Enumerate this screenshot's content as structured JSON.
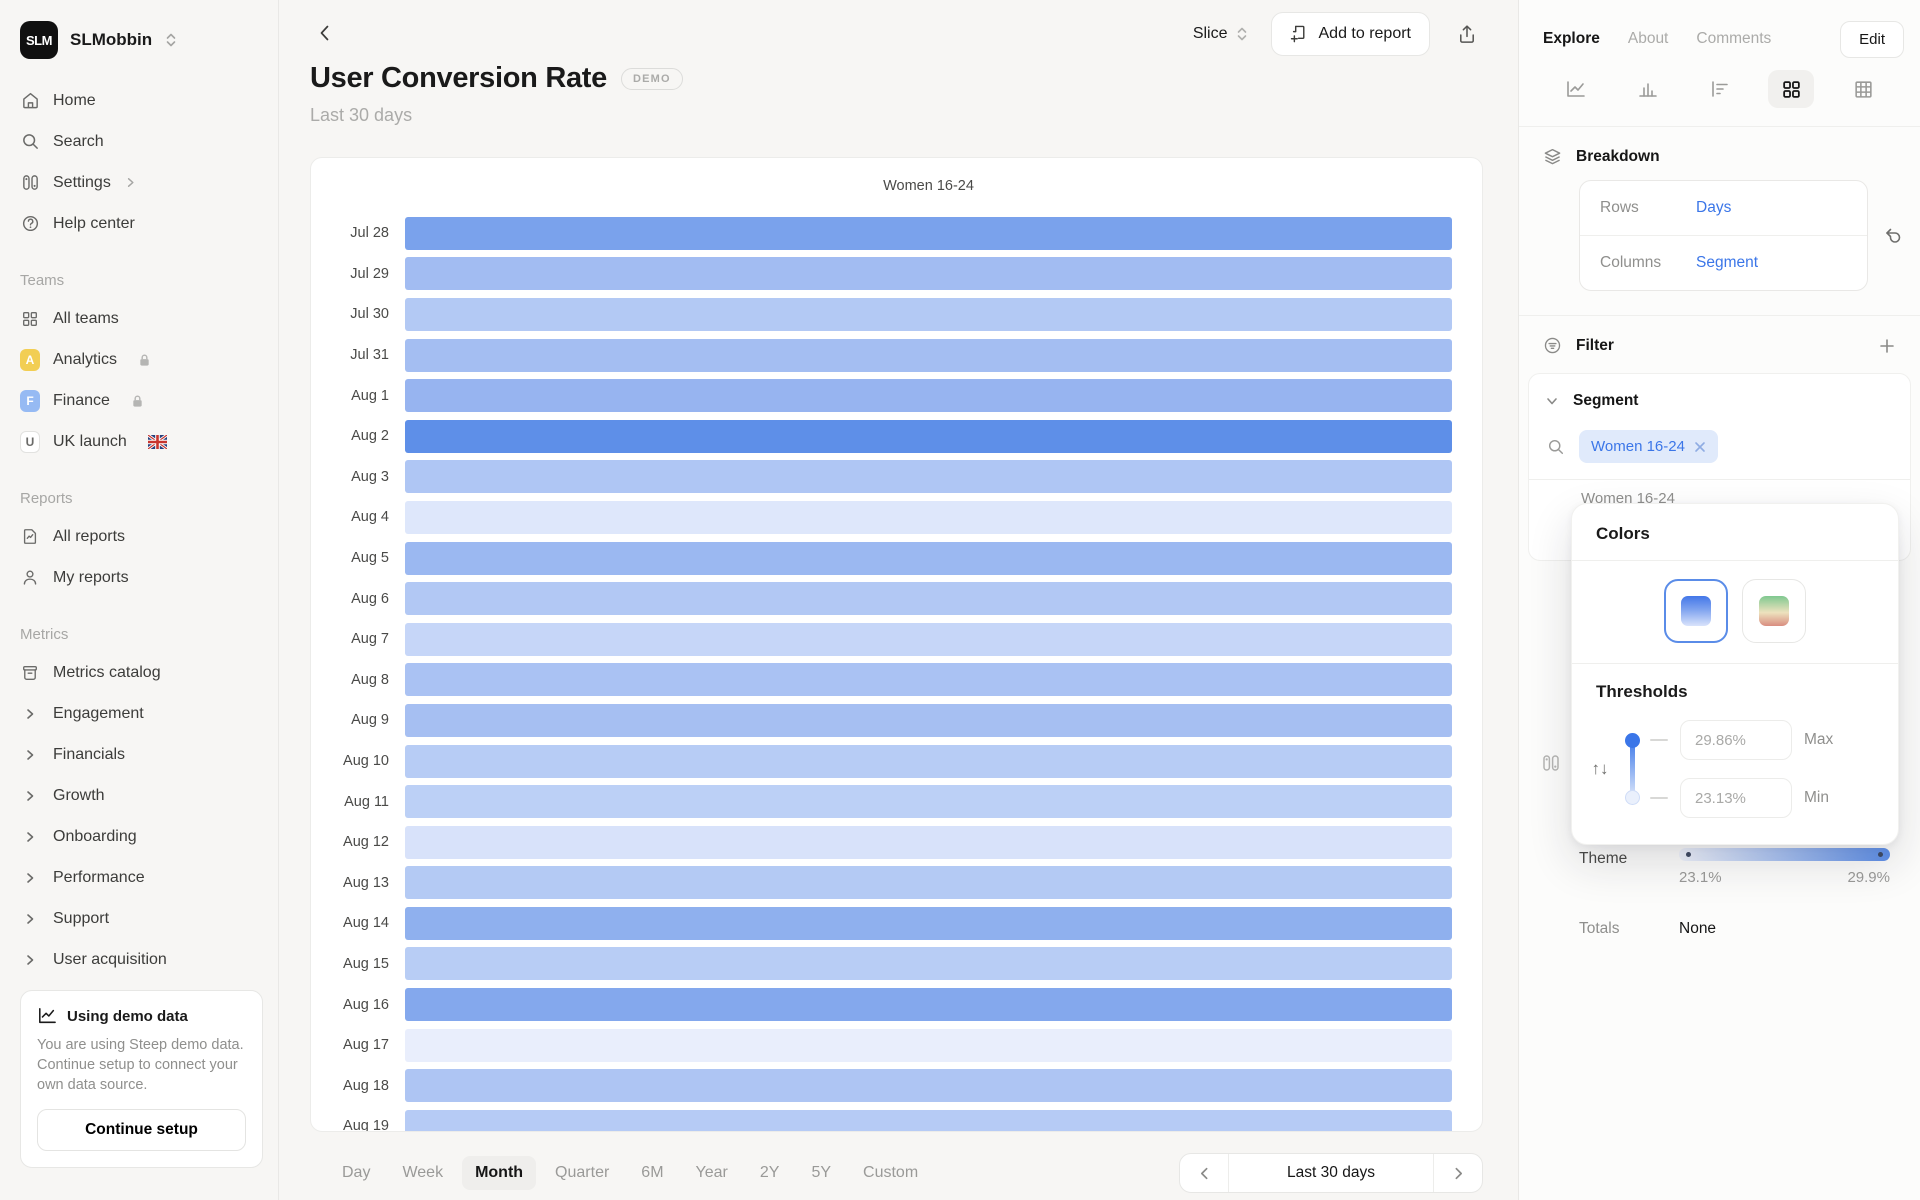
{
  "workspace": {
    "name": "SLMobbin",
    "logo_text": "SLM"
  },
  "sidebar": {
    "main_items": [
      {
        "label": "Home"
      },
      {
        "label": "Search"
      },
      {
        "label": "Settings"
      },
      {
        "label": "Help center"
      }
    ],
    "teams": {
      "title": "Teams",
      "items": [
        {
          "label": "All teams"
        },
        {
          "label": "Analytics",
          "badge": "A",
          "locked": true
        },
        {
          "label": "Finance",
          "badge": "F",
          "locked": true
        },
        {
          "label": "UK launch",
          "badge": "U",
          "flag": "uk"
        }
      ]
    },
    "reports": {
      "title": "Reports",
      "items": [
        {
          "label": "All reports"
        },
        {
          "label": "My reports"
        }
      ]
    },
    "metrics": {
      "title": "Metrics",
      "catalog_label": "Metrics catalog",
      "groups": [
        {
          "label": "Engagement"
        },
        {
          "label": "Financials"
        },
        {
          "label": "Growth"
        },
        {
          "label": "Onboarding"
        },
        {
          "label": "Performance"
        },
        {
          "label": "Support"
        },
        {
          "label": "User acquisition"
        }
      ]
    },
    "demo_card": {
      "title": "Using demo data",
      "body": "You are using Steep demo data. Continue setup to connect your own data source.",
      "button": "Continue setup"
    }
  },
  "header": {
    "title": "User Conversion Rate",
    "badge": "DEMO",
    "subtitle": "Last 30 days",
    "slice_label": "Slice",
    "add_to_report_label": "Add to report"
  },
  "toolbar": {
    "granularity": [
      "Day",
      "Week",
      "Month",
      "Quarter",
      "6M",
      "Year",
      "2Y",
      "5Y",
      "Custom"
    ],
    "active": "Month",
    "range_label": "Last 30 days"
  },
  "right_panel": {
    "tabs": {
      "explore": "Explore",
      "about": "About",
      "comments": "Comments"
    },
    "edit_button": "Edit",
    "breakdown": {
      "title": "Breakdown",
      "rows_label": "Rows",
      "rows_value": "Days",
      "columns_label": "Columns",
      "columns_value": "Segment"
    },
    "filter": {
      "title": "Filter"
    },
    "segment": {
      "title": "Segment",
      "chip": "Women 16-24",
      "hidden_option": "Women 16-24"
    },
    "colors_popup": {
      "title": "Colors",
      "thresholds_title": "Thresholds",
      "max_value": "29.86%",
      "max_label": "Max",
      "min_value": "23.13%",
      "min_label": "Min"
    },
    "theme": {
      "label": "Theme",
      "min_tick": "23.1%",
      "max_tick": "29.9%"
    },
    "totals": {
      "label": "Totals",
      "value": "None"
    }
  },
  "chart_data": {
    "type": "heatmap",
    "title": "User Conversion Rate",
    "subtitle": "Last 30 days",
    "column_header": "Women 16-24",
    "scale": {
      "min_pct": 23.1,
      "max_pct": 29.9,
      "min_color": "#E9EEFC",
      "max_color": "#5E8FE8"
    },
    "rows": [
      {
        "date": "Jul 28",
        "color": "#7AA2EC",
        "value_pct_est": 29.0
      },
      {
        "date": "Jul 29",
        "color": "#A2BCF2",
        "value_pct_est": 27.3
      },
      {
        "date": "Jul 30",
        "color": "#B3C9F4",
        "value_pct_est": 26.8
      },
      {
        "date": "Jul 31",
        "color": "#A4BEF2",
        "value_pct_est": 27.2
      },
      {
        "date": "Aug 1",
        "color": "#97B4F0",
        "value_pct_est": 27.7
      },
      {
        "date": "Aug 2",
        "color": "#5E8FE8",
        "value_pct_est": 29.9
      },
      {
        "date": "Aug 3",
        "color": "#AFC6F4",
        "value_pct_est": 26.9
      },
      {
        "date": "Aug 4",
        "color": "#DEE7FB",
        "value_pct_est": 24.6
      },
      {
        "date": "Aug 5",
        "color": "#9BB8F1",
        "value_pct_est": 27.6
      },
      {
        "date": "Aug 6",
        "color": "#B2C8F4",
        "value_pct_est": 26.8
      },
      {
        "date": "Aug 7",
        "color": "#C6D6F8",
        "value_pct_est": 25.8
      },
      {
        "date": "Aug 8",
        "color": "#AAC2F3",
        "value_pct_est": 27.0
      },
      {
        "date": "Aug 9",
        "color": "#A6BFF2",
        "value_pct_est": 27.2
      },
      {
        "date": "Aug 10",
        "color": "#B7CCF5",
        "value_pct_est": 26.6
      },
      {
        "date": "Aug 11",
        "color": "#BCD0F6",
        "value_pct_est": 26.4
      },
      {
        "date": "Aug 12",
        "color": "#D8E2FA",
        "value_pct_est": 24.9
      },
      {
        "date": "Aug 13",
        "color": "#B4CAF4",
        "value_pct_est": 26.7
      },
      {
        "date": "Aug 14",
        "color": "#8FB0EE",
        "value_pct_est": 28.1
      },
      {
        "date": "Aug 15",
        "color": "#B8CDF5",
        "value_pct_est": 26.6
      },
      {
        "date": "Aug 16",
        "color": "#84A8ED",
        "value_pct_est": 28.5
      },
      {
        "date": "Aug 17",
        "color": "#E9EEFC",
        "value_pct_est": 23.5
      },
      {
        "date": "Aug 18",
        "color": "#AEC5F3",
        "value_pct_est": 26.9
      },
      {
        "date": "Aug 19",
        "color": "#B6CBF5",
        "value_pct_est": 26.6
      }
    ]
  }
}
